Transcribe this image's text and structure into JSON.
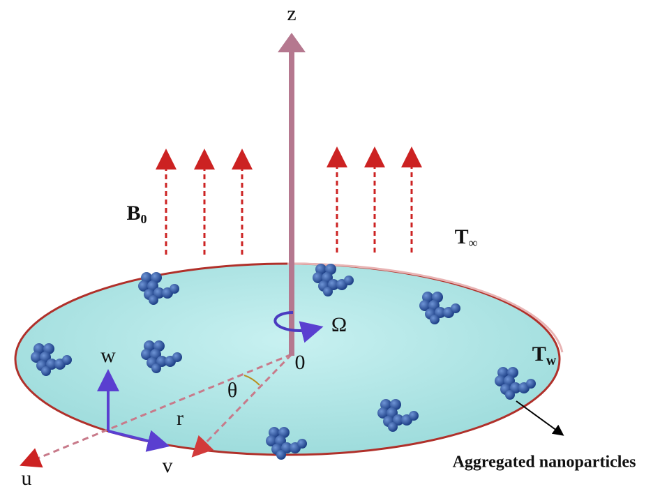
{
  "labels": {
    "z": "z",
    "b0": {
      "main": "B",
      "sub": "0"
    },
    "t_inf": {
      "main": "T",
      "sub": "∞"
    },
    "omega": "Ω",
    "t_w": {
      "main": "T",
      "sub": "w"
    },
    "w": "w",
    "origin": "0",
    "theta": "θ",
    "r": "r",
    "v": "v",
    "u": "u",
    "aggregated": "Aggregated nanoparticles"
  }
}
